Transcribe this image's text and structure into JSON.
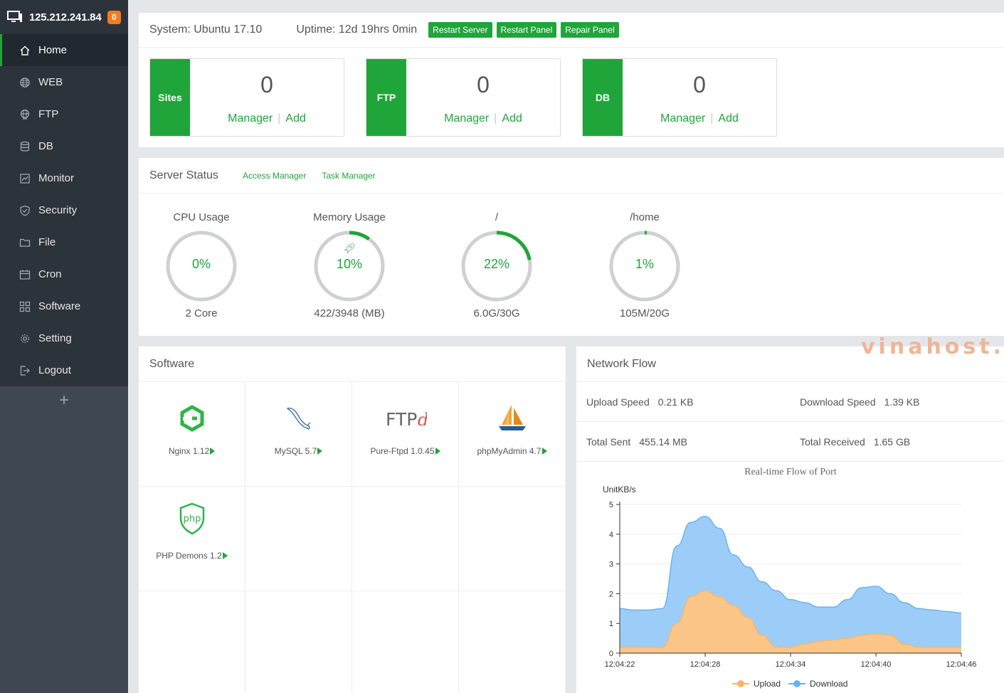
{
  "sidebar": {
    "ip": "125.212.241.84",
    "badge": "0",
    "items": [
      {
        "label": "Home",
        "icon": "home-icon",
        "active": true
      },
      {
        "label": "WEB",
        "icon": "globe-icon"
      },
      {
        "label": "FTP",
        "icon": "ftp-globe-icon"
      },
      {
        "label": "DB",
        "icon": "database-icon"
      },
      {
        "label": "Monitor",
        "icon": "monitor-icon"
      },
      {
        "label": "Security",
        "icon": "shield-icon"
      },
      {
        "label": "File",
        "icon": "folder-icon"
      },
      {
        "label": "Cron",
        "icon": "calendar-icon"
      },
      {
        "label": "Software",
        "icon": "grid-icon"
      },
      {
        "label": "Setting",
        "icon": "gear-icon"
      },
      {
        "label": "Logout",
        "icon": "logout-icon"
      }
    ],
    "add": "+"
  },
  "topbar": {
    "system": "System: Ubuntu 17.10",
    "uptime": "Uptime: 12d 19hrs 0min",
    "buttons": [
      "Restart Server",
      "Restart Panel",
      "Repair Panel"
    ]
  },
  "stats": [
    {
      "label": "Sites",
      "count": "0",
      "manager": "Manager",
      "add": "Add"
    },
    {
      "label": "FTP",
      "count": "0",
      "manager": "Manager",
      "add": "Add"
    },
    {
      "label": "DB",
      "count": "0",
      "manager": "Manager",
      "add": "Add"
    }
  ],
  "server_status": {
    "title": "Server Status",
    "links": [
      "Access Manager",
      "Task Manager"
    ],
    "gauges": [
      {
        "title": "CPU Usage",
        "value": "0%",
        "percent": 0,
        "sub": "2 Core"
      },
      {
        "title": "Memory Usage",
        "value": "10%",
        "percent": 10,
        "sub": "422/3948 (MB)"
      },
      {
        "title": "/",
        "value": "22%",
        "percent": 22,
        "sub": "6.0G/30G"
      },
      {
        "title": "/home",
        "value": "1%",
        "percent": 1,
        "sub": "105M/20G"
      }
    ]
  },
  "software": {
    "title": "Software",
    "items": [
      {
        "name": "Nginx 1.12",
        "icon": "nginx-icon"
      },
      {
        "name": "MySQL 5.7",
        "icon": "mysql-dolphin-icon"
      },
      {
        "name": "Pure-Ftpd 1.0.45",
        "icon": "ftpd-icon"
      },
      {
        "name": "phpMyAdmin 4.7",
        "icon": "phpmyadmin-icon"
      },
      {
        "name": "PHP Demons 1.2",
        "icon": "php-shield-icon"
      }
    ]
  },
  "network": {
    "title": "Network Flow",
    "upload_label": "Upload Speed",
    "upload_value": "0.21 KB",
    "download_label": "Download Speed",
    "download_value": "1.39 KB",
    "sent_label": "Total Sent",
    "sent_value": "455.14 MB",
    "received_label": "Total Received",
    "received_value": "1.65 GB"
  },
  "watermark": "vinahost.",
  "colors": {
    "accent": "#20a53a",
    "upload": "#fbb564",
    "download": "#6ab2f7",
    "sidebar": "#3f4752"
  },
  "chart_data": {
    "type": "area",
    "title": "Real-time Flow of Port",
    "ylabel": "UnitKB/s",
    "ylim": [
      0,
      5
    ],
    "yticks": [
      0,
      1,
      2,
      3,
      4,
      5
    ],
    "x": [
      0,
      1,
      2,
      3,
      4,
      5,
      6,
      7,
      8,
      9,
      10,
      11,
      12,
      13,
      14,
      15,
      16,
      17,
      18,
      19,
      20,
      21,
      22,
      23,
      24
    ],
    "xticks": [
      {
        "i": 0,
        "label": "12:04:22"
      },
      {
        "i": 6,
        "label": "12:04:28"
      },
      {
        "i": 12,
        "label": "12:04:34"
      },
      {
        "i": 18,
        "label": "12:04:40"
      },
      {
        "i": 24,
        "label": "12:04:46"
      }
    ],
    "stacked": true,
    "series": [
      {
        "name": "Upload",
        "color": "#fbb564",
        "values": [
          0.2,
          0.2,
          0.2,
          0.2,
          1.0,
          1.9,
          2.1,
          1.9,
          1.6,
          1.2,
          0.6,
          0.2,
          0.2,
          0.3,
          0.4,
          0.45,
          0.5,
          0.6,
          0.65,
          0.6,
          0.3,
          0.2,
          0.2,
          0.2,
          0.2
        ]
      },
      {
        "name": "Download",
        "color": "#6ab2f7",
        "values": [
          1.3,
          1.25,
          1.25,
          1.3,
          2.6,
          2.5,
          2.5,
          2.3,
          1.7,
          1.7,
          1.8,
          1.9,
          1.6,
          1.4,
          1.15,
          1.1,
          1.3,
          1.6,
          1.6,
          1.4,
          1.4,
          1.3,
          1.25,
          1.2,
          1.15
        ]
      }
    ]
  }
}
